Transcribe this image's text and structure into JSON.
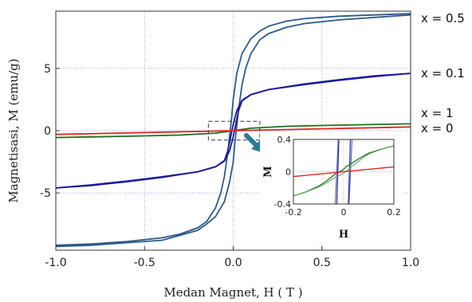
{
  "chart_data": [
    {
      "type": "line",
      "title": "",
      "xlabel": "Medan Magnet, H ( T )",
      "ylabel": "Magnetisasi, M (emu/g)",
      "xlim": [
        -1.0,
        1.0
      ],
      "ylim": [
        -9.6,
        9.6
      ],
      "x_ticks": [
        "-1.0",
        "-0.5",
        "0.0",
        "0.5",
        "1.0"
      ],
      "y_ticks": [
        "-5",
        "0",
        "5"
      ],
      "grid": true,
      "series": [
        {
          "name": "x = 0.5",
          "color": "#2c5a8a",
          "branch_descending": {
            "x": [
              -1.0,
              -0.8,
              -0.6,
              -0.4,
              -0.3,
              -0.2,
              -0.15,
              -0.1,
              -0.07,
              -0.05,
              -0.03,
              -0.01,
              0.0,
              0.02,
              0.05,
              0.1,
              0.15,
              0.2,
              0.3,
              0.4,
              0.6,
              0.8,
              1.0
            ],
            "y": [
              -9.2,
              -9.1,
              -8.9,
              -8.6,
              -8.3,
              -7.8,
              -7.3,
              -6.2,
              -5.0,
              -3.7,
              -1.7,
              0.9,
              2.5,
              4.6,
              6.2,
              7.4,
              8.0,
              8.4,
              8.8,
              9.0,
              9.2,
              9.3,
              9.4
            ]
          },
          "branch_ascending": {
            "x": [
              -1.0,
              -0.8,
              -0.6,
              -0.4,
              -0.3,
              -0.2,
              -0.15,
              -0.1,
              -0.05,
              -0.02,
              0.0,
              0.01,
              0.03,
              0.05,
              0.07,
              0.1,
              0.15,
              0.2,
              0.3,
              0.4,
              0.6,
              0.8,
              1.0
            ],
            "y": [
              -9.3,
              -9.2,
              -9.0,
              -8.8,
              -8.4,
              -8.0,
              -7.5,
              -6.9,
              -5.7,
              -4.1,
              -2.5,
              -0.9,
              1.7,
              3.7,
              5.0,
              6.2,
              7.3,
              7.8,
              8.3,
              8.6,
              8.9,
              9.1,
              9.3
            ]
          }
        },
        {
          "name": "x = 0.1",
          "color": "#1a1a9a",
          "branch_descending": {
            "x": [
              -1.0,
              -0.8,
              -0.6,
              -0.4,
              -0.2,
              -0.1,
              -0.05,
              -0.03,
              -0.01,
              0.0,
              0.02,
              0.05,
              0.1,
              0.2,
              0.4,
              0.6,
              0.8,
              1.0
            ],
            "y": [
              -4.6,
              -4.35,
              -4.05,
              -3.7,
              -3.3,
              -2.9,
              -2.4,
              -1.6,
              -0.2,
              0.5,
              1.6,
              2.45,
              2.9,
              3.3,
              3.75,
              4.1,
              4.4,
              4.6
            ]
          },
          "branch_ascending": {
            "x": [
              -1.0,
              -0.8,
              -0.6,
              -0.4,
              -0.2,
              -0.1,
              -0.05,
              -0.02,
              0.0,
              0.01,
              0.03,
              0.05,
              0.1,
              0.2,
              0.4,
              0.6,
              0.8,
              1.0
            ],
            "y": [
              -4.6,
              -4.4,
              -4.1,
              -3.75,
              -3.3,
              -2.9,
              -2.45,
              -1.6,
              -0.5,
              0.2,
              1.6,
              2.4,
              2.9,
              3.3,
              3.7,
              4.05,
              4.35,
              4.6
            ]
          }
        },
        {
          "name": "x = 1",
          "color": "#1f6e1f",
          "x": [
            -1.0,
            -0.6,
            -0.3,
            -0.1,
            0.0,
            0.1,
            0.3,
            0.6,
            1.0
          ],
          "y": [
            -0.55,
            -0.45,
            -0.35,
            -0.2,
            0.0,
            0.2,
            0.35,
            0.45,
            0.55
          ]
        },
        {
          "name": "x = 0",
          "color": "#e0261e",
          "x": [
            -1.0,
            1.0
          ],
          "y": [
            -0.3,
            0.3
          ]
        }
      ],
      "annotations": [
        "x = 0.5",
        "x = 0.1",
        "x = 1",
        "x = 0"
      ]
    },
    {
      "type": "line",
      "title": "",
      "xlabel": "H",
      "ylabel": "M",
      "xlim": [
        -0.2,
        0.2
      ],
      "ylim": [
        -0.4,
        0.4
      ],
      "x_ticks": [
        "-0.2",
        "0",
        "0.2"
      ],
      "y_ticks": [
        "0.4",
        "0",
        "-0.4"
      ],
      "grid": true,
      "series": [
        {
          "name": "x = 1",
          "color": "#2f7a2f",
          "x": [
            -0.2,
            -0.15,
            -0.1,
            -0.07,
            -0.05,
            -0.03,
            -0.01,
            0.0,
            0.01,
            0.03,
            0.05,
            0.07,
            0.1,
            0.15,
            0.2
          ],
          "y": [
            -0.3,
            -0.25,
            -0.18,
            -0.12,
            -0.07,
            -0.02,
            0.01,
            0.03,
            0.06,
            0.1,
            0.14,
            0.18,
            0.23,
            0.28,
            0.32
          ]
        },
        {
          "name": "x = 0",
          "color": "#e0261e",
          "x": [
            -0.2,
            0.2
          ],
          "y": [
            -0.06,
            0.06
          ]
        }
      ]
    }
  ]
}
